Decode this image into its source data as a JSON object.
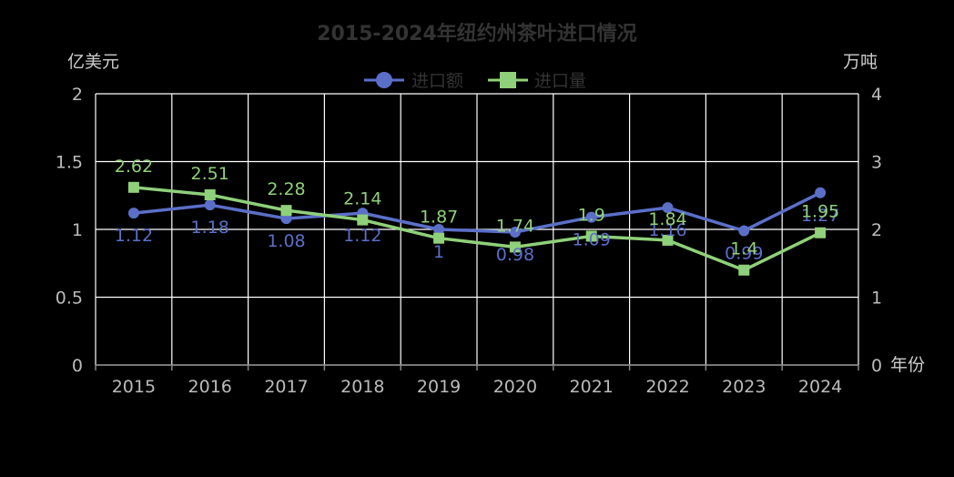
{
  "chart_data": {
    "type": "line",
    "title": "2015-2024年纽约州茶叶进口情况",
    "categories": [
      "2015",
      "2016",
      "2017",
      "2018",
      "2019",
      "2020",
      "2021",
      "2022",
      "2023",
      "2024"
    ],
    "xlabel": "年份",
    "y_left": {
      "label": "亿美元",
      "range": [
        0,
        2
      ],
      "ticks": [
        "0",
        "0.5",
        "1",
        "1.5",
        "2"
      ]
    },
    "y_right": {
      "label": "万吨",
      "range": [
        0,
        4
      ],
      "ticks": [
        "0",
        "1",
        "2",
        "3",
        "4"
      ]
    },
    "series": [
      {
        "name": "进口额",
        "axis": "left",
        "color": "#5b6fc8",
        "marker": "circle",
        "values": [
          1.12,
          1.18,
          1.08,
          1.12,
          1,
          0.98,
          1.09,
          1.16,
          0.99,
          1.27
        ],
        "labels": [
          "1.12",
          "1.18",
          "1.08",
          "1.12",
          "1",
          "0.98",
          "1.09",
          "1.16",
          "0.99",
          "1.27"
        ]
      },
      {
        "name": "进口量",
        "axis": "right",
        "color": "#8fd07a",
        "marker": "square",
        "values": [
          2.62,
          2.51,
          2.28,
          2.14,
          1.87,
          1.74,
          1.9,
          1.84,
          1.4,
          1.95
        ],
        "labels": [
          "2.62",
          "2.51",
          "2.28",
          "2.14",
          "1.87",
          "1.74",
          "1.9",
          "1.84",
          "1.4",
          "1.95"
        ]
      }
    ],
    "legend": "top-center",
    "grid": true
  }
}
